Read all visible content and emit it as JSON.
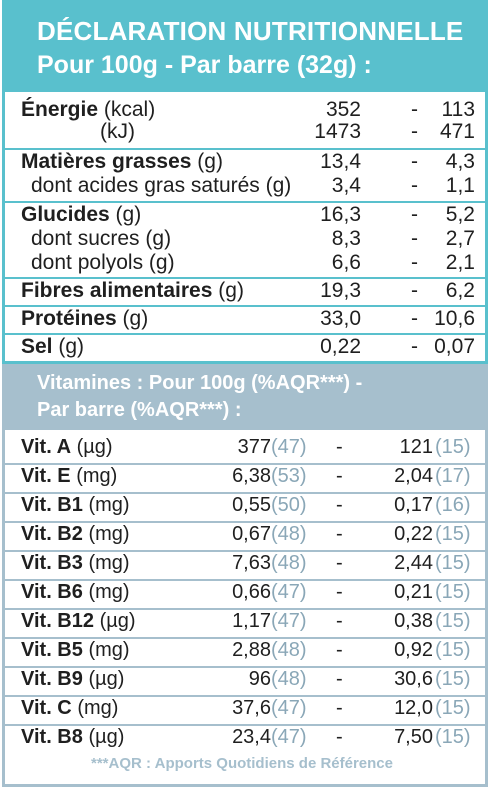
{
  "header": {
    "line1": "DÉCLARATION NUTRITIONNELLE",
    "line2": "Pour 100g - Par barre (32g) :"
  },
  "nutrition": [
    {
      "label": "Énergie",
      "unit": "(kcal)",
      "v100": "352",
      "vbar": "113"
    },
    {
      "label": "",
      "unit": "(kJ)",
      "v100": "1473",
      "vbar": "471"
    },
    {
      "label": "Matières grasses",
      "unit": "(g)",
      "v100": "13,4",
      "vbar": "4,3"
    },
    {
      "label": "dont acides gras saturés (g)",
      "unit": "",
      "v100": "3,4",
      "vbar": "1,1"
    },
    {
      "label": "Glucides",
      "unit": "(g)",
      "v100": "16,3",
      "vbar": "5,2"
    },
    {
      "label": "dont sucres (g)",
      "unit": "",
      "v100": "8,3",
      "vbar": "2,7"
    },
    {
      "label": "dont polyols (g)",
      "unit": "",
      "v100": "6,6",
      "vbar": "2,1"
    },
    {
      "label": "Fibres alimentaires",
      "unit": "(g)",
      "v100": "19,3",
      "vbar": "6,2"
    },
    {
      "label": "Protéines",
      "unit": "(g)",
      "v100": "33,0",
      "vbar": "10,6"
    },
    {
      "label": "Sel",
      "unit": "(g)",
      "v100": "0,22",
      "vbar": "0,07"
    }
  ],
  "dash": "-",
  "vitamins_header": {
    "line1": "Vitamines : Pour 100g (%AQR***) -",
    "line2": "Par barre (%AQR***) :"
  },
  "vitamins": [
    {
      "name": "Vit. A",
      "unit": "(µg)",
      "v100": "377",
      "p100": "(47)",
      "vbar": "121",
      "pbar": "(15)"
    },
    {
      "name": "Vit. E",
      "unit": "(mg)",
      "v100": "6,38",
      "p100": "(53)",
      "vbar": "2,04",
      "pbar": "(17)"
    },
    {
      "name": "Vit. B1",
      "unit": "(mg)",
      "v100": "0,55",
      "p100": "(50)",
      "vbar": "0,17",
      "pbar": "(16)"
    },
    {
      "name": "Vit. B2",
      "unit": "(mg)",
      "v100": "0,67",
      "p100": "(48)",
      "vbar": "0,22",
      "pbar": "(15)"
    },
    {
      "name": "Vit. B3",
      "unit": "(mg)",
      "v100": "7,63",
      "p100": "(48)",
      "vbar": "2,44",
      "pbar": "(15)"
    },
    {
      "name": "Vit. B6",
      "unit": "(mg)",
      "v100": "0,66",
      "p100": "(47)",
      "vbar": "0,21",
      "pbar": "(15)"
    },
    {
      "name": "Vit. B12",
      "unit": "(µg)",
      "v100": "1,17",
      "p100": "(47)",
      "vbar": "0,38",
      "pbar": "(15)"
    },
    {
      "name": "Vit. B5",
      "unit": "(mg)",
      "v100": "2,88",
      "p100": "(48)",
      "vbar": "0,92",
      "pbar": "(15)"
    },
    {
      "name": "Vit. B9",
      "unit": "(µg)",
      "v100": "96",
      "p100": "(48)",
      "vbar": "30,6",
      "pbar": "(15)"
    },
    {
      "name": "Vit. C",
      "unit": "(mg)",
      "v100": "37,6",
      "p100": "(47)",
      "vbar": "12,0",
      "pbar": "(15)"
    },
    {
      "name": "Vit. B8",
      "unit": "(µg)",
      "v100": "23,4",
      "p100": "(47)",
      "vbar": "7,50",
      "pbar": "(15)"
    }
  ],
  "footer": "***AQR : Apports Quotidiens de Référence",
  "colors": {
    "teal": "#59c0cd",
    "slate": "#a6bfcd",
    "percent": "#8aa7b7"
  }
}
